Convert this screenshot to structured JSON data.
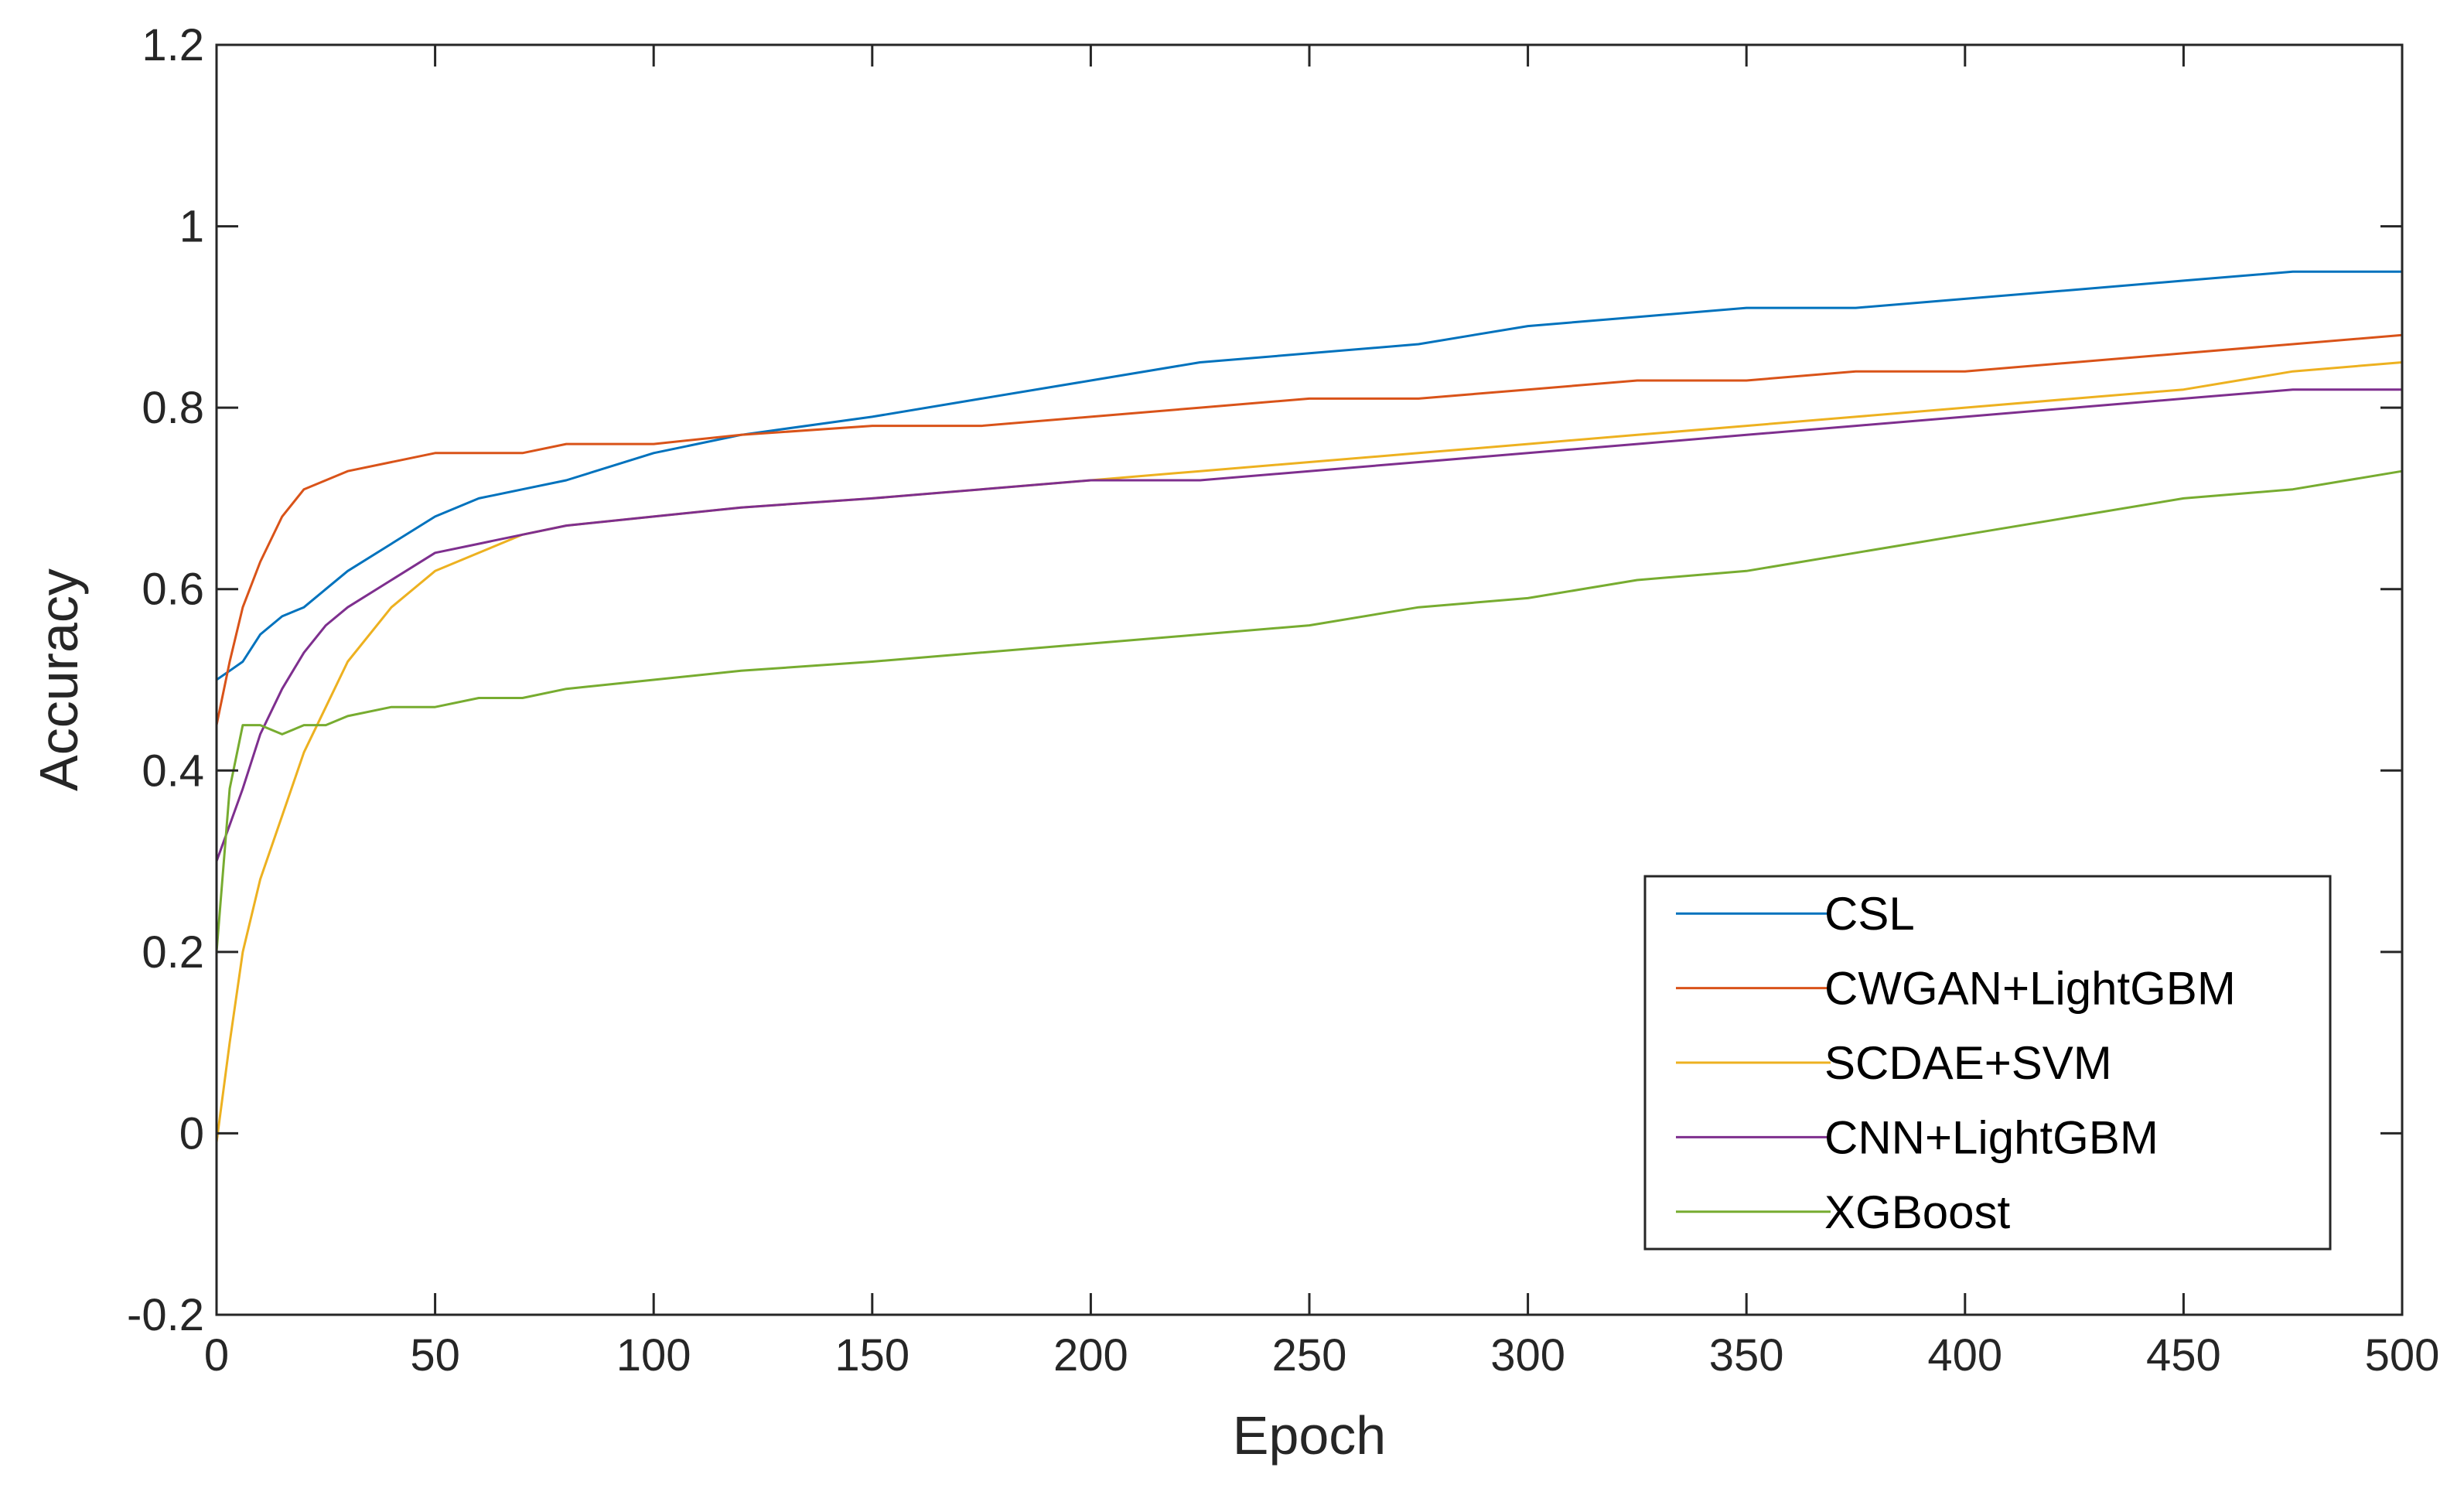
{
  "chart_data": {
    "type": "line",
    "title": "",
    "xlabel": "Epoch",
    "ylabel": "Accuracy",
    "xlim": [
      0,
      500
    ],
    "ylim": [
      -0.2,
      1.2
    ],
    "xticks": [
      0,
      50,
      100,
      150,
      200,
      250,
      300,
      350,
      400,
      450,
      500
    ],
    "yticks": [
      -0.2,
      0,
      0.2,
      0.4,
      0.6,
      0.8,
      1,
      1.2
    ],
    "xtick_labels": [
      "0",
      "50",
      "100",
      "150",
      "200",
      "250",
      "300",
      "350",
      "400",
      "450",
      "500"
    ],
    "ytick_labels": [
      "-0.2",
      "0",
      "0.2",
      "0.4",
      "0.6",
      "0.8",
      "1",
      "1.2"
    ],
    "grid": false,
    "legend_position": "bottom-right",
    "series": [
      {
        "name": "CSL",
        "color": "#0072BD",
        "x": [
          0,
          3,
          6,
          10,
          15,
          20,
          25,
          30,
          40,
          50,
          60,
          70,
          80,
          100,
          120,
          150,
          175,
          200,
          225,
          250,
          275,
          300,
          325,
          350,
          375,
          400,
          425,
          450,
          475,
          500
        ],
        "y": [
          0.5,
          0.51,
          0.52,
          0.55,
          0.57,
          0.58,
          0.6,
          0.62,
          0.65,
          0.68,
          0.7,
          0.71,
          0.72,
          0.75,
          0.77,
          0.79,
          0.81,
          0.83,
          0.85,
          0.86,
          0.87,
          0.89,
          0.9,
          0.91,
          0.91,
          0.92,
          0.93,
          0.94,
          0.95,
          0.95
        ]
      },
      {
        "name": "CWGAN+LightGBM",
        "color": "#D95319",
        "x": [
          0,
          3,
          6,
          10,
          15,
          20,
          25,
          30,
          40,
          50,
          60,
          70,
          80,
          100,
          120,
          150,
          175,
          200,
          225,
          250,
          275,
          300,
          325,
          350,
          375,
          400,
          425,
          450,
          475,
          500
        ],
        "y": [
          0.45,
          0.52,
          0.58,
          0.63,
          0.68,
          0.71,
          0.72,
          0.73,
          0.74,
          0.75,
          0.75,
          0.75,
          0.76,
          0.76,
          0.77,
          0.78,
          0.78,
          0.79,
          0.8,
          0.81,
          0.81,
          0.82,
          0.83,
          0.83,
          0.84,
          0.84,
          0.85,
          0.86,
          0.87,
          0.88
        ]
      },
      {
        "name": "SCDAE+SVM",
        "color": "#EDB120",
        "x": [
          0,
          3,
          6,
          10,
          15,
          20,
          25,
          30,
          40,
          50,
          60,
          70,
          80,
          100,
          120,
          150,
          175,
          200,
          225,
          250,
          275,
          300,
          325,
          350,
          375,
          400,
          425,
          450,
          475,
          500
        ],
        "y": [
          -0.01,
          0.1,
          0.2,
          0.28,
          0.35,
          0.42,
          0.47,
          0.52,
          0.58,
          0.62,
          0.64,
          0.66,
          0.67,
          0.68,
          0.69,
          0.7,
          0.71,
          0.72,
          0.73,
          0.74,
          0.75,
          0.76,
          0.77,
          0.78,
          0.79,
          0.8,
          0.81,
          0.82,
          0.84,
          0.85
        ]
      },
      {
        "name": "CNN+LightGBM",
        "color": "#7E2F8E",
        "x": [
          0,
          3,
          6,
          10,
          15,
          20,
          25,
          30,
          40,
          50,
          60,
          70,
          80,
          100,
          120,
          150,
          175,
          200,
          225,
          250,
          275,
          300,
          325,
          350,
          375,
          400,
          425,
          450,
          475,
          500
        ],
        "y": [
          0.3,
          0.34,
          0.38,
          0.44,
          0.49,
          0.53,
          0.56,
          0.58,
          0.61,
          0.64,
          0.65,
          0.66,
          0.67,
          0.68,
          0.69,
          0.7,
          0.71,
          0.72,
          0.72,
          0.73,
          0.74,
          0.75,
          0.76,
          0.77,
          0.78,
          0.79,
          0.8,
          0.81,
          0.82,
          0.82
        ]
      },
      {
        "name": "XGBoost",
        "color": "#77AC30",
        "x": [
          0,
          3,
          6,
          10,
          15,
          20,
          25,
          30,
          40,
          50,
          60,
          70,
          80,
          100,
          120,
          150,
          175,
          200,
          225,
          250,
          275,
          300,
          325,
          350,
          375,
          400,
          425,
          450,
          475,
          500
        ],
        "y": [
          0.2,
          0.38,
          0.45,
          0.45,
          0.44,
          0.45,
          0.45,
          0.46,
          0.47,
          0.47,
          0.48,
          0.48,
          0.49,
          0.5,
          0.51,
          0.52,
          0.53,
          0.54,
          0.55,
          0.56,
          0.58,
          0.59,
          0.61,
          0.62,
          0.64,
          0.66,
          0.68,
          0.7,
          0.71,
          0.73
        ]
      }
    ]
  }
}
